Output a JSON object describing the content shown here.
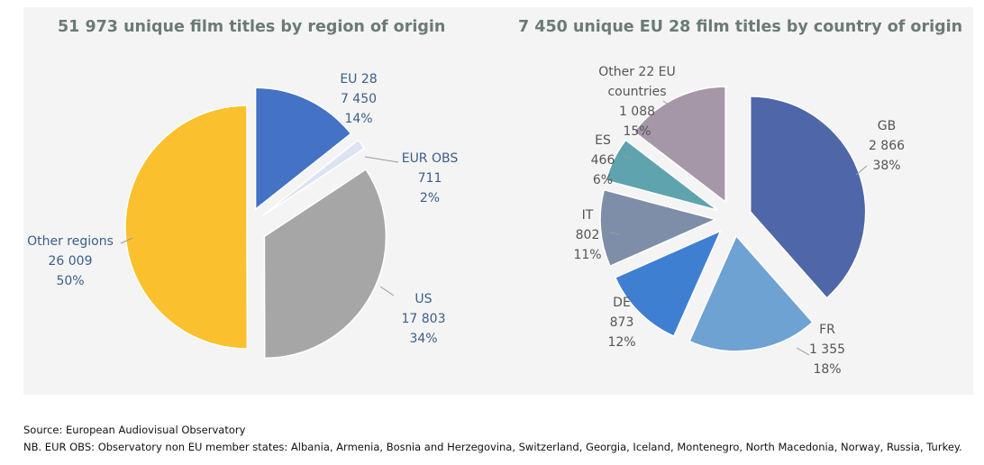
{
  "chart_data": [
    {
      "type": "pie",
      "title": "51 973 unique film titles by region of origin",
      "categories": [
        "EU 28",
        "EUR OBS",
        "US",
        "Other regions"
      ],
      "values": [
        7450,
        711,
        17803,
        26009
      ],
      "value_labels": [
        "7 450",
        "711",
        "17 803",
        "26 009"
      ],
      "percent_labels": [
        "14%",
        "2%",
        "34%",
        "50%"
      ],
      "colors": [
        "#4472c4",
        "#dce3f3",
        "#a6a6a6",
        "#fbc02d"
      ],
      "exploded": true
    },
    {
      "type": "pie",
      "title": "7 450 unique EU 28 film titles by country of origin",
      "categories": [
        "GB",
        "FR",
        "DE",
        "IT",
        "ES",
        "Other 22 EU countries"
      ],
      "values": [
        2866,
        1355,
        873,
        802,
        466,
        1088
      ],
      "value_labels": [
        "2 866",
        "1 355",
        "873",
        "802",
        "466",
        "1 088"
      ],
      "percent_labels": [
        "38%",
        "18%",
        "12%",
        "11%",
        "6%",
        "15%"
      ],
      "colors": [
        "#4f67a8",
        "#6ea2d2",
        "#3e7fd2",
        "#7f8ea8",
        "#5ea3ad",
        "#a597a8"
      ],
      "exploded": true
    }
  ],
  "footer": {
    "source": "Source: European Audiovisual Observatory",
    "note": "NB. EUR OBS: Observatory non EU member states: Albania, Armenia, Bosnia and Herzegovina, Switzerland, Georgia, Iceland, Montenegro, North Macedonia, Norway, Russia, Turkey."
  }
}
